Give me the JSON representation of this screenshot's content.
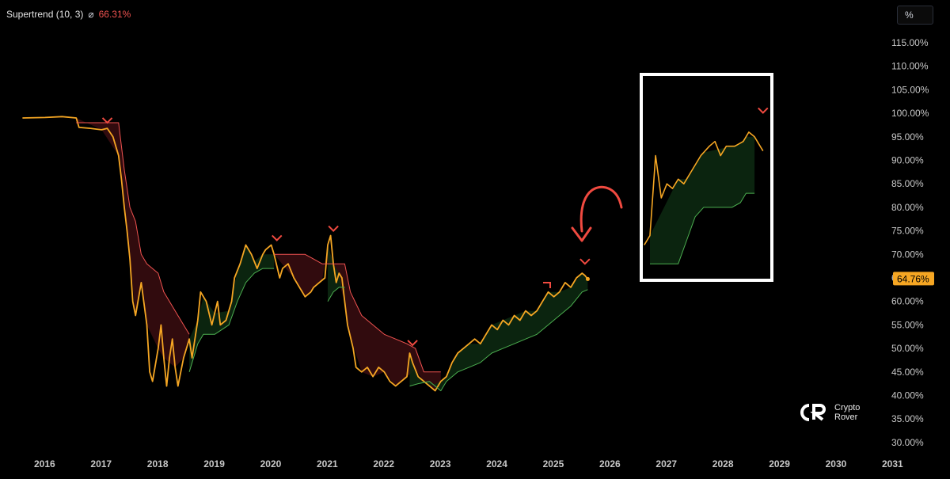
{
  "legend": {
    "indicator": "Supertrend (10, 3)",
    "symbol": "⌀",
    "value": "66.31%"
  },
  "scale_button": "%",
  "watermark": {
    "line1": "Crypto",
    "line2": "Rover"
  },
  "colors": {
    "price": "#f5a623",
    "bearish": "#ef5350",
    "bullish": "#4caf50",
    "bear_fill": "#3a0d10",
    "bull_fill": "#0d2a12",
    "background": "#000000",
    "axis_text": "#c8c8c8",
    "annotation": "#f04a40",
    "highlight_box": "#ffffff"
  },
  "chart_data": {
    "type": "line",
    "title": "",
    "xlabel": "",
    "ylabel": "",
    "x_ticks": [
      "2016",
      "2017",
      "2018",
      "2019",
      "2020",
      "2021",
      "2022",
      "2023",
      "2024",
      "2025",
      "2026",
      "2027",
      "2028",
      "2029",
      "2030",
      "2031"
    ],
    "y_ticks": [
      "115.00%",
      "110.00%",
      "105.00%",
      "100.00%",
      "95.00%",
      "90.00%",
      "85.00%",
      "80.00%",
      "75.00%",
      "70.00%",
      "65.00%",
      "60.00%",
      "55.00%",
      "50.00%",
      "45.00%",
      "40.00%",
      "35.00%",
      "30.00%"
    ],
    "ylim": [
      30,
      115
    ],
    "last_value_label": "64.76%",
    "series": [
      {
        "points": [
          [
            2015.6,
            99
          ],
          [
            2016.0,
            99.1
          ],
          [
            2016.3,
            99.3
          ],
          [
            2016.55,
            99
          ],
          [
            2016.6,
            97
          ],
          [
            2016.8,
            96.8
          ],
          [
            2017.0,
            96.5
          ],
          [
            2017.1,
            96.8
          ],
          [
            2017.2,
            95
          ],
          [
            2017.3,
            91
          ],
          [
            2017.35,
            86
          ],
          [
            2017.4,
            80
          ],
          [
            2017.45,
            75
          ],
          [
            2017.5,
            69
          ],
          [
            2017.55,
            60
          ],
          [
            2017.6,
            57
          ],
          [
            2017.7,
            64
          ],
          [
            2017.8,
            55
          ],
          [
            2017.85,
            45
          ],
          [
            2017.9,
            43
          ],
          [
            2018.0,
            50
          ],
          [
            2018.05,
            55
          ],
          [
            2018.1,
            48
          ],
          [
            2018.15,
            42
          ],
          [
            2018.2,
            48
          ],
          [
            2018.25,
            52
          ],
          [
            2018.3,
            46
          ],
          [
            2018.35,
            42
          ],
          [
            2018.45,
            48
          ],
          [
            2018.55,
            52
          ],
          [
            2018.6,
            48
          ],
          [
            2018.7,
            56
          ],
          [
            2018.75,
            62
          ],
          [
            2018.85,
            60
          ],
          [
            2018.95,
            55
          ],
          [
            2019.05,
            60
          ],
          [
            2019.1,
            55
          ],
          [
            2019.2,
            56
          ],
          [
            2019.3,
            60
          ],
          [
            2019.35,
            65
          ],
          [
            2019.45,
            68
          ],
          [
            2019.55,
            72
          ],
          [
            2019.65,
            70
          ],
          [
            2019.75,
            67
          ],
          [
            2019.85,
            70
          ],
          [
            2019.9,
            71
          ],
          [
            2020.0,
            72
          ],
          [
            2020.05,
            70
          ],
          [
            2020.15,
            65
          ],
          [
            2020.2,
            67
          ],
          [
            2020.3,
            68
          ],
          [
            2020.4,
            65
          ],
          [
            2020.5,
            63
          ],
          [
            2020.6,
            61
          ],
          [
            2020.7,
            62
          ],
          [
            2020.75,
            63
          ],
          [
            2020.85,
            64
          ],
          [
            2020.95,
            65
          ],
          [
            2021.0,
            72
          ],
          [
            2021.05,
            74
          ],
          [
            2021.1,
            68
          ],
          [
            2021.15,
            64
          ],
          [
            2021.2,
            66
          ],
          [
            2021.25,
            65
          ],
          [
            2021.3,
            60
          ],
          [
            2021.35,
            55
          ],
          [
            2021.45,
            50
          ],
          [
            2021.5,
            46
          ],
          [
            2021.6,
            45
          ],
          [
            2021.7,
            46
          ],
          [
            2021.8,
            44
          ],
          [
            2021.9,
            46
          ],
          [
            2022.0,
            45
          ],
          [
            2022.1,
            43
          ],
          [
            2022.2,
            42
          ],
          [
            2022.3,
            43
          ],
          [
            2022.4,
            44
          ],
          [
            2022.45,
            49
          ],
          [
            2022.5,
            47
          ],
          [
            2022.6,
            44
          ],
          [
            2022.7,
            43
          ],
          [
            2022.8,
            42
          ],
          [
            2022.9,
            41
          ],
          [
            2023.0,
            43
          ],
          [
            2023.1,
            44
          ],
          [
            2023.2,
            47
          ],
          [
            2023.3,
            49
          ],
          [
            2023.4,
            50
          ],
          [
            2023.5,
            51
          ],
          [
            2023.6,
            52
          ],
          [
            2023.7,
            51
          ],
          [
            2023.8,
            53
          ],
          [
            2023.9,
            55
          ],
          [
            2024.0,
            54
          ],
          [
            2024.1,
            56
          ],
          [
            2024.2,
            55
          ],
          [
            2024.3,
            57
          ],
          [
            2024.4,
            56
          ],
          [
            2024.5,
            58
          ],
          [
            2024.6,
            57
          ],
          [
            2024.7,
            58
          ],
          [
            2024.8,
            60
          ],
          [
            2024.9,
            62
          ],
          [
            2025.0,
            61
          ],
          [
            2025.1,
            62
          ],
          [
            2025.2,
            64
          ],
          [
            2025.3,
            63
          ],
          [
            2025.4,
            65
          ],
          [
            2025.5,
            66
          ],
          [
            2025.55,
            65.5
          ],
          [
            2025.6,
            64.76
          ]
        ]
      },
      {
        "points": [
          [
            2016.55,
            98
          ],
          [
            2017.0,
            98
          ],
          [
            2017.3,
            98
          ],
          [
            2017.35,
            93
          ],
          [
            2017.4,
            88
          ],
          [
            2017.5,
            80
          ],
          [
            2017.6,
            77
          ],
          [
            2017.7,
            70
          ],
          [
            2017.8,
            68
          ],
          [
            2018.0,
            66
          ],
          [
            2018.1,
            62
          ],
          [
            2018.3,
            58
          ],
          [
            2018.45,
            55
          ],
          [
            2018.55,
            53
          ]
        ]
      },
      {
        "points": [
          [
            2020.05,
            70
          ],
          [
            2020.4,
            70
          ],
          [
            2020.6,
            70
          ],
          [
            2020.75,
            69
          ],
          [
            2020.9,
            68
          ],
          [
            2021.0,
            68
          ],
          [
            2021.3,
            68
          ],
          [
            2021.4,
            62
          ],
          [
            2021.6,
            57
          ],
          [
            2021.8,
            55
          ],
          [
            2022.0,
            53
          ],
          [
            2022.2,
            52
          ],
          [
            2022.4,
            51
          ],
          [
            2022.55,
            50
          ],
          [
            2022.7,
            45
          ],
          [
            2022.9,
            45
          ],
          [
            2023.0,
            45
          ]
        ]
      },
      {
        "points": [
          [
            2018.55,
            45
          ],
          [
            2018.7,
            51
          ],
          [
            2018.8,
            53
          ],
          [
            2019.0,
            53
          ],
          [
            2019.25,
            55
          ],
          [
            2019.4,
            60
          ],
          [
            2019.55,
            64
          ],
          [
            2019.7,
            66
          ],
          [
            2019.85,
            67
          ],
          [
            2020.05,
            67
          ]
        ]
      },
      {
        "points": [
          [
            2021.0,
            60
          ],
          [
            2021.1,
            62
          ],
          [
            2021.2,
            63
          ],
          [
            2021.3,
            63
          ]
        ]
      },
      {
        "points": [
          [
            2022.45,
            42
          ],
          [
            2022.6,
            42.5
          ],
          [
            2022.8,
            43
          ],
          [
            2023.0,
            41
          ],
          [
            2023.1,
            43
          ],
          [
            2023.3,
            45
          ],
          [
            2023.5,
            46
          ],
          [
            2023.7,
            47
          ],
          [
            2023.9,
            49
          ],
          [
            2024.1,
            50
          ],
          [
            2024.3,
            51
          ],
          [
            2024.5,
            52
          ],
          [
            2024.7,
            53
          ],
          [
            2024.9,
            55
          ],
          [
            2025.1,
            57
          ],
          [
            2025.3,
            59
          ],
          [
            2025.5,
            62
          ],
          [
            2025.6,
            62.5
          ]
        ]
      },
      {
        "points": [
          [
            2026.6,
            72
          ],
          [
            2026.7,
            74
          ],
          [
            2026.8,
            91
          ],
          [
            2026.9,
            82
          ],
          [
            2027.0,
            85
          ],
          [
            2027.1,
            84
          ],
          [
            2027.2,
            86
          ],
          [
            2027.3,
            85
          ],
          [
            2027.45,
            88
          ],
          [
            2027.6,
            91
          ],
          [
            2027.75,
            93
          ],
          [
            2027.85,
            94
          ],
          [
            2027.95,
            91
          ],
          [
            2028.05,
            93
          ],
          [
            2028.2,
            93
          ],
          [
            2028.35,
            94
          ],
          [
            2028.45,
            96
          ],
          [
            2028.55,
            95
          ],
          [
            2028.65,
            93
          ],
          [
            2028.7,
            92
          ]
        ]
      },
      {
        "points": [
          [
            2026.7,
            68
          ],
          [
            2027.2,
            68
          ],
          [
            2027.35,
            73
          ],
          [
            2027.5,
            78
          ],
          [
            2027.65,
            80
          ],
          [
            2028.15,
            80
          ],
          [
            2028.3,
            81
          ],
          [
            2028.4,
            83
          ],
          [
            2028.55,
            83
          ]
        ]
      }
    ]
  }
}
